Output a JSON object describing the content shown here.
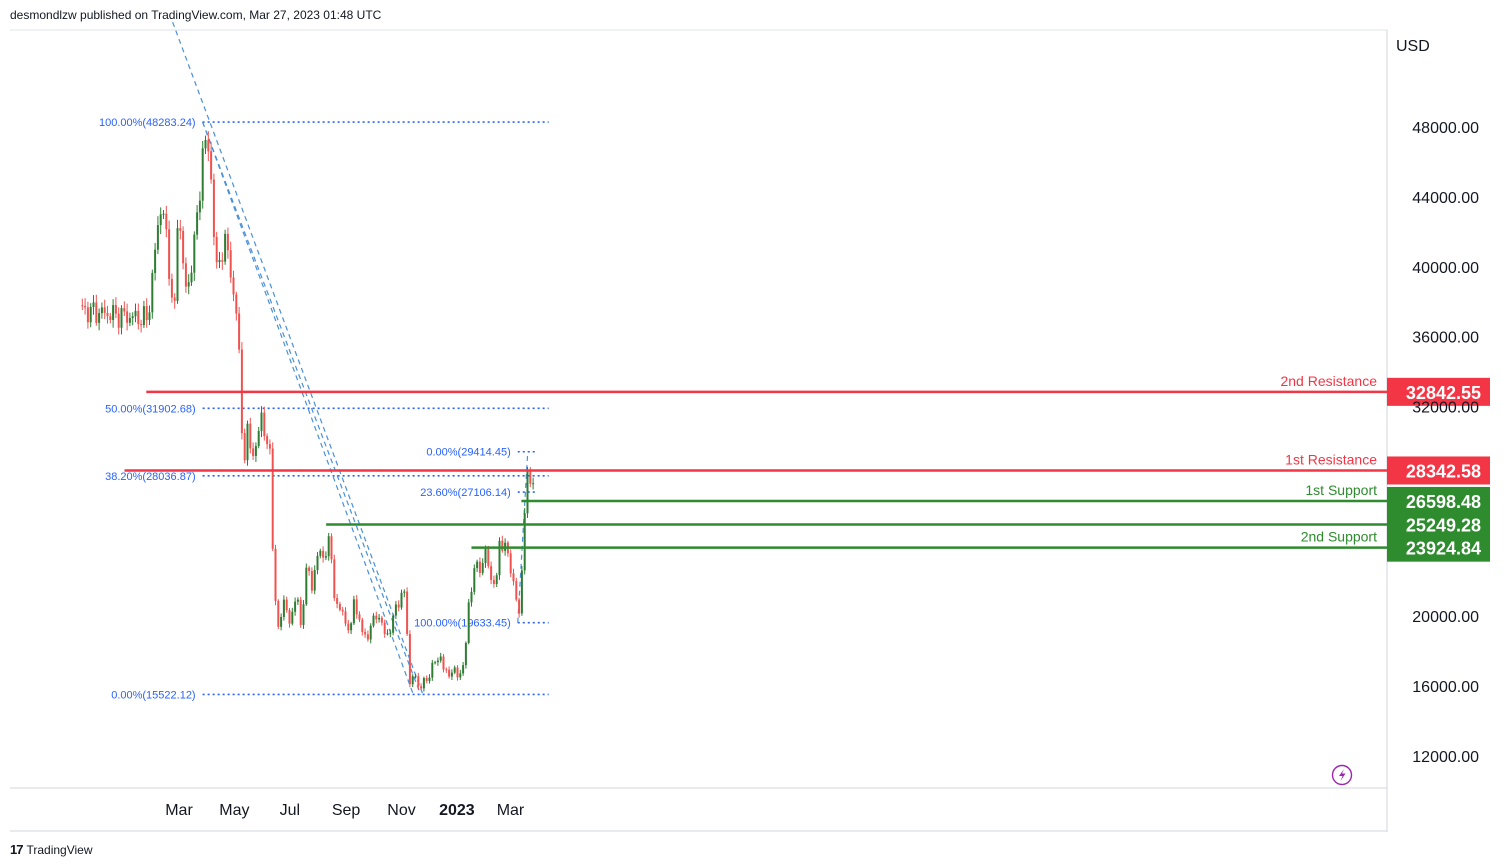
{
  "header": {
    "attribution": "desmondlzw published on TradingView.com, Mar 27, 2023 01:48 UTC"
  },
  "footer": {
    "logo_glyph": "17",
    "brand": "TradingView"
  },
  "chart_data": {
    "type": "candlestick",
    "currency": "USD",
    "y_ticks": [
      {
        "value": 48000,
        "label": "48000.00"
      },
      {
        "value": 44000,
        "label": "44000.00"
      },
      {
        "value": 40000,
        "label": "40000.00"
      },
      {
        "value": 36000,
        "label": "36000.00"
      },
      {
        "value": 32000,
        "label": "32000.00"
      },
      {
        "value": 20000,
        "label": "20000.00"
      },
      {
        "value": 16000,
        "label": "16000.00"
      },
      {
        "value": 12000,
        "label": "12000.00"
      }
    ],
    "x_ticks": [
      {
        "date": "2022-03-01",
        "label": "Mar",
        "bold": false
      },
      {
        "date": "2022-05-01",
        "label": "May",
        "bold": false
      },
      {
        "date": "2022-07-01",
        "label": "Jul",
        "bold": false
      },
      {
        "date": "2022-09-01",
        "label": "Sep",
        "bold": false
      },
      {
        "date": "2022-11-01",
        "label": "Nov",
        "bold": false
      },
      {
        "date": "2023-01-01",
        "label": "2023",
        "bold": true
      },
      {
        "date": "2023-03-01",
        "label": "Mar",
        "bold": false
      }
    ],
    "price_series": [
      [
        "2022-01-24",
        37000
      ],
      [
        "2022-01-28",
        38000
      ],
      [
        "2022-02-06",
        42500
      ],
      [
        "2022-02-10",
        43800
      ],
      [
        "2022-02-14",
        42000
      ],
      [
        "2022-02-20",
        39000
      ],
      [
        "2022-02-24",
        37000
      ],
      [
        "2022-02-28",
        43500
      ],
      [
        "2022-03-03",
        42000
      ],
      [
        "2022-03-08",
        38500
      ],
      [
        "2022-03-12",
        39000
      ],
      [
        "2022-03-16",
        41000
      ],
      [
        "2022-03-20",
        42000
      ],
      [
        "2022-03-24",
        44500
      ],
      [
        "2022-03-28",
        47400
      ],
      [
        "2022-04-01",
        46500
      ],
      [
        "2022-04-04",
        46600
      ],
      [
        "2022-04-07",
        43500
      ],
      [
        "2022-04-11",
        39500
      ],
      [
        "2022-04-15",
        40500
      ],
      [
        "2022-04-20",
        41500
      ],
      [
        "2022-04-25",
        40500
      ],
      [
        "2022-04-30",
        38500
      ],
      [
        "2022-05-05",
        36500
      ],
      [
        "2022-05-09",
        31000
      ],
      [
        "2022-05-12",
        29000
      ],
      [
        "2022-05-15",
        30500
      ],
      [
        "2022-05-20",
        29500
      ],
      [
        "2022-05-25",
        29500
      ],
      [
        "2022-05-31",
        31700
      ],
      [
        "2022-06-05",
        29900
      ],
      [
        "2022-06-10",
        29000
      ],
      [
        "2022-06-13",
        22500
      ],
      [
        "2022-06-18",
        19000
      ],
      [
        "2022-06-25",
        21200
      ],
      [
        "2022-07-01",
        19300
      ],
      [
        "2022-07-08",
        21600
      ],
      [
        "2022-07-13",
        19300
      ],
      [
        "2022-07-20",
        23200
      ],
      [
        "2022-07-26",
        21200
      ],
      [
        "2022-07-30",
        23800
      ],
      [
        "2022-08-05",
        23200
      ],
      [
        "2022-08-14",
        24400
      ],
      [
        "2022-08-19",
        21200
      ],
      [
        "2022-08-26",
        20200
      ],
      [
        "2022-09-01",
        19800
      ],
      [
        "2022-09-06",
        18800
      ],
      [
        "2022-09-09",
        21300
      ],
      [
        "2022-09-13",
        20200
      ],
      [
        "2022-09-19",
        19000
      ],
      [
        "2022-09-25",
        18900
      ],
      [
        "2022-10-05",
        20300
      ],
      [
        "2022-10-12",
        19100
      ],
      [
        "2022-10-20",
        19100
      ],
      [
        "2022-10-26",
        20700
      ],
      [
        "2022-11-05",
        21300
      ],
      [
        "2022-11-08",
        18500
      ],
      [
        "2022-11-09",
        15900
      ],
      [
        "2022-11-15",
        16700
      ],
      [
        "2022-11-21",
        15900
      ],
      [
        "2022-11-28",
        16300
      ],
      [
        "2022-12-05",
        17100
      ],
      [
        "2022-12-14",
        17800
      ],
      [
        "2022-12-18",
        16700
      ],
      [
        "2022-12-26",
        16850
      ],
      [
        "2023-01-02",
        16650
      ],
      [
        "2023-01-08",
        17100
      ],
      [
        "2023-01-12",
        18900
      ],
      [
        "2023-01-14",
        20800
      ],
      [
        "2023-01-21",
        22800
      ],
      [
        "2023-01-30",
        23000
      ],
      [
        "2023-02-02",
        23700
      ],
      [
        "2023-02-09",
        21800
      ],
      [
        "2023-02-14",
        22100
      ],
      [
        "2023-02-16",
        24400
      ],
      [
        "2023-02-21",
        24100
      ],
      [
        "2023-02-26",
        23500
      ],
      [
        "2023-03-03",
        22400
      ],
      [
        "2023-03-09",
        20300
      ],
      [
        "2023-03-11",
        20000
      ],
      [
        "2023-03-13",
        22200
      ],
      [
        "2023-03-15",
        24400
      ],
      [
        "2023-03-18",
        27400
      ],
      [
        "2023-03-21",
        28100
      ],
      [
        "2023-03-24",
        27600
      ],
      [
        "2023-03-26",
        28000
      ]
    ],
    "horizontal_levels": [
      {
        "label": "2nd Resistance",
        "price_label": "32842.55",
        "value": 32842.55,
        "kind": "resistance",
        "start": "2022-01-24"
      },
      {
        "label": "1st Resistance",
        "price_label": "28342.58",
        "value": 28342.58,
        "kind": "resistance",
        "start": "2021-12-31"
      },
      {
        "label": "1st Support",
        "price_label": "26598.48",
        "value": 26598.48,
        "kind": "support",
        "start": "2023-03-13"
      },
      {
        "label": "",
        "price_label": "25249.28",
        "value": 25249.28,
        "kind": "support",
        "start": "2022-08-10"
      },
      {
        "label": "2nd Support",
        "price_label": "23924.84",
        "value": 23924.84,
        "kind": "support",
        "start": "2023-01-17"
      }
    ],
    "fib_levels": [
      {
        "label": "100.00%(48283.24)",
        "value": 48283.24,
        "start": "2022-03-27",
        "end": "2023-04-12"
      },
      {
        "label": "50.00%(31902.68)",
        "value": 31902.68,
        "start": "2022-03-27",
        "end": "2023-04-12"
      },
      {
        "label": "38.20%(28036.87)",
        "value": 28036.87,
        "start": "2022-03-27",
        "end": "2023-04-12"
      },
      {
        "label": "0.00%(15522.12)",
        "value": 15522.12,
        "start": "2022-03-27",
        "end": "2023-04-12"
      },
      {
        "label": "0.00%(29414.45)",
        "value": 29414.45,
        "start": "2023-03-09",
        "end": "2023-03-31"
      },
      {
        "label": "23.60%(27106.14)",
        "value": 27106.14,
        "start": "2023-03-09",
        "end": "2023-03-31"
      },
      {
        "label": "100.00%(19633.45)",
        "value": 19633.45,
        "start": "2023-03-09",
        "end": "2023-04-12"
      }
    ],
    "trendlines": [
      {
        "from": [
          "2022-02-22",
          54000
        ],
        "to": [
          "2022-11-24",
          15600
        ]
      },
      {
        "from": [
          "2022-03-27",
          48283.24
        ],
        "to": [
          "2022-11-22",
          15522.12
        ]
      },
      {
        "from": [
          "2022-03-27",
          48283.24
        ],
        "to": [
          "2022-11-14",
          15522.12
        ]
      },
      {
        "from": [
          "2023-03-09",
          19633.45
        ],
        "to": [
          "2023-03-20",
          29414.45
        ]
      }
    ],
    "colors": {
      "up": "#26a69a",
      "up_candle": "#2e7d32",
      "down": "#ef5350",
      "resistance": "#f23645",
      "support": "#2e8b2e",
      "fib": "#2962ff",
      "trend": "#4a90d9",
      "axis_text": "#131722",
      "grid": "#e0e3eb"
    }
  }
}
